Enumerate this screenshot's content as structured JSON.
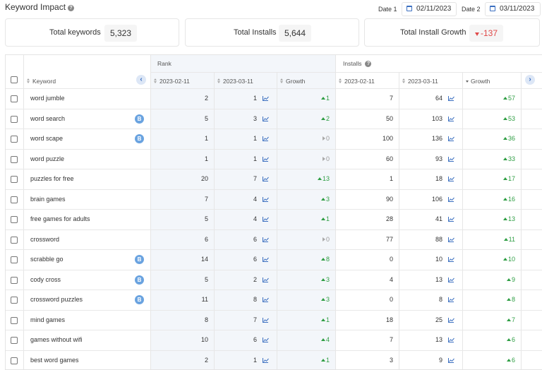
{
  "header": {
    "title": "Keyword Impact",
    "date1_label": "Date 1",
    "date1_value": "02/11/2023",
    "date2_label": "Date 2",
    "date2_value": "03/11/2023"
  },
  "stats": {
    "total_keywords_label": "Total keywords",
    "total_keywords_value": "5,323",
    "total_installs_label": "Total Installs",
    "total_installs_value": "5,644",
    "total_growth_label": "Total Install Growth",
    "total_growth_value": "-137"
  },
  "table": {
    "group_rank": "Rank",
    "group_installs": "Installs",
    "col_keyword": "Keyword",
    "col_rank_d1": "2023-02-11",
    "col_rank_d2": "2023-03-11",
    "col_rank_growth": "Growth",
    "col_inst_d1": "2023-02-11",
    "col_inst_d2": "2023-03-11",
    "col_inst_growth": "Growth",
    "prev_label": "‹",
    "next_label": "›",
    "badge_label": "B",
    "rows": [
      {
        "keyword": "word jumble",
        "badge": false,
        "rank_d1": "2",
        "rank_d2": "1",
        "rank_growth": "1",
        "rank_trend": "up",
        "inst_d1": "7",
        "inst_d2": "64",
        "inst_growth": "57"
      },
      {
        "keyword": "word search",
        "badge": true,
        "rank_d1": "5",
        "rank_d2": "3",
        "rank_growth": "2",
        "rank_trend": "up",
        "inst_d1": "50",
        "inst_d2": "103",
        "inst_growth": "53"
      },
      {
        "keyword": "word scape",
        "badge": true,
        "rank_d1": "1",
        "rank_d2": "1",
        "rank_growth": "0",
        "rank_trend": "flat",
        "inst_d1": "100",
        "inst_d2": "136",
        "inst_growth": "36"
      },
      {
        "keyword": "word puzzle",
        "badge": false,
        "rank_d1": "1",
        "rank_d2": "1",
        "rank_growth": "0",
        "rank_trend": "flat",
        "inst_d1": "60",
        "inst_d2": "93",
        "inst_growth": "33"
      },
      {
        "keyword": "puzzles for free",
        "badge": false,
        "rank_d1": "20",
        "rank_d2": "7",
        "rank_growth": "13",
        "rank_trend": "up",
        "inst_d1": "1",
        "inst_d2": "18",
        "inst_growth": "17"
      },
      {
        "keyword": "brain games",
        "badge": false,
        "rank_d1": "7",
        "rank_d2": "4",
        "rank_growth": "3",
        "rank_trend": "up",
        "inst_d1": "90",
        "inst_d2": "106",
        "inst_growth": "16"
      },
      {
        "keyword": "free games for adults",
        "badge": false,
        "rank_d1": "5",
        "rank_d2": "4",
        "rank_growth": "1",
        "rank_trend": "up",
        "inst_d1": "28",
        "inst_d2": "41",
        "inst_growth": "13"
      },
      {
        "keyword": "crossword",
        "badge": false,
        "rank_d1": "6",
        "rank_d2": "6",
        "rank_growth": "0",
        "rank_trend": "flat",
        "inst_d1": "77",
        "inst_d2": "88",
        "inst_growth": "11"
      },
      {
        "keyword": "scrabble go",
        "badge": true,
        "rank_d1": "14",
        "rank_d2": "6",
        "rank_growth": "8",
        "rank_trend": "up",
        "inst_d1": "0",
        "inst_d2": "10",
        "inst_growth": "10"
      },
      {
        "keyword": "cody cross",
        "badge": true,
        "rank_d1": "5",
        "rank_d2": "2",
        "rank_growth": "3",
        "rank_trend": "up",
        "inst_d1": "4",
        "inst_d2": "13",
        "inst_growth": "9"
      },
      {
        "keyword": "crossword puzzles",
        "badge": true,
        "rank_d1": "11",
        "rank_d2": "8",
        "rank_growth": "3",
        "rank_trend": "up",
        "inst_d1": "0",
        "inst_d2": "8",
        "inst_growth": "8"
      },
      {
        "keyword": "mind games",
        "badge": false,
        "rank_d1": "8",
        "rank_d2": "7",
        "rank_growth": "1",
        "rank_trend": "up",
        "inst_d1": "18",
        "inst_d2": "25",
        "inst_growth": "7"
      },
      {
        "keyword": "games without wifi",
        "badge": false,
        "rank_d1": "10",
        "rank_d2": "6",
        "rank_growth": "4",
        "rank_trend": "up",
        "inst_d1": "7",
        "inst_d2": "13",
        "inst_growth": "6"
      },
      {
        "keyword": "best word games",
        "badge": false,
        "rank_d1": "2",
        "rank_d2": "1",
        "rank_growth": "1",
        "rank_trend": "up",
        "inst_d1": "3",
        "inst_d2": "9",
        "inst_growth": "6"
      }
    ]
  },
  "colors": {
    "accent": "#3b6fc0",
    "positive": "#2f9e44",
    "negative": "#e04848",
    "badge": "#6aa3e0"
  }
}
